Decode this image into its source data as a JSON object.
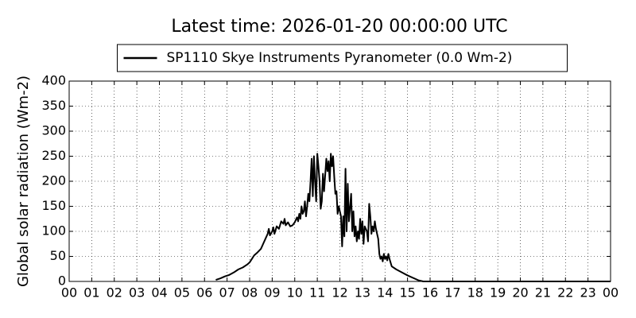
{
  "chart_data": {
    "type": "line",
    "title": "Latest time: 2026-01-20 00:00:00 UTC",
    "y_label": "Global solar radiation (Wm-2)",
    "legend_position": "upper center",
    "grid": true,
    "series": [
      {
        "name": "SP1110 Skye Instruments Pyranometer (0.0 Wm-2)",
        "color": "#000000",
        "x": [
          6.5,
          6.7,
          6.9,
          7.1,
          7.3,
          7.5,
          7.7,
          7.9,
          8.0,
          8.1,
          8.2,
          8.35,
          8.5,
          8.6,
          8.7,
          8.8,
          8.85,
          8.9,
          9.0,
          9.05,
          9.1,
          9.2,
          9.3,
          9.4,
          9.5,
          9.55,
          9.6,
          9.7,
          9.8,
          9.9,
          10.0,
          10.1,
          10.15,
          10.2,
          10.25,
          10.3,
          10.35,
          10.4,
          10.45,
          10.5,
          10.55,
          10.6,
          10.65,
          10.7,
          10.75,
          10.8,
          10.85,
          10.9,
          10.95,
          11.0,
          11.05,
          11.1,
          11.15,
          11.2,
          11.25,
          11.3,
          11.4,
          11.45,
          11.5,
          11.55,
          11.6,
          11.65,
          11.7,
          11.75,
          11.8,
          11.85,
          11.9,
          11.95,
          12.05,
          12.1,
          12.15,
          12.2,
          12.25,
          12.3,
          12.35,
          12.4,
          12.5,
          12.55,
          12.6,
          12.65,
          12.7,
          12.75,
          12.8,
          12.85,
          12.9,
          12.95,
          13.0,
          13.05,
          13.1,
          13.2,
          13.25,
          13.3,
          13.35,
          13.4,
          13.45,
          13.5,
          13.55,
          13.6,
          13.7,
          13.75,
          13.8,
          13.85,
          13.9,
          13.95,
          14.0,
          14.05,
          14.1,
          14.15,
          14.2,
          14.3,
          14.5,
          15.0,
          15.5,
          15.7,
          16.0,
          24.0
        ],
        "values": [
          3,
          6,
          10,
          13,
          18,
          24,
          28,
          34,
          38,
          45,
          52,
          58,
          65,
          75,
          85,
          95,
          105,
          92,
          100,
          108,
          95,
          110,
          105,
          120,
          115,
          125,
          112,
          118,
          110,
          112,
          118,
          128,
          120,
          135,
          125,
          150,
          135,
          140,
          160,
          130,
          150,
          175,
          160,
          200,
          245,
          170,
          250,
          200,
          160,
          255,
          230,
          200,
          145,
          160,
          215,
          180,
          245,
          220,
          240,
          200,
          255,
          230,
          250,
          210,
          175,
          180,
          135,
          150,
          130,
          70,
          130,
          90,
          225,
          100,
          195,
          120,
          175,
          100,
          140,
          90,
          110,
          80,
          100,
          85,
          125,
          95,
          120,
          75,
          110,
          100,
          80,
          155,
          130,
          95,
          110,
          100,
          120,
          105,
          85,
          55,
          45,
          50,
          40,
          55,
          45,
          50,
          42,
          55,
          45,
          30,
          24,
          12,
          2,
          0,
          0,
          0
        ]
      }
    ],
    "xlim": [
      0,
      24
    ],
    "xticks": [
      {
        "value": 0,
        "label": "00"
      },
      {
        "value": 1,
        "label": "01"
      },
      {
        "value": 2,
        "label": "02"
      },
      {
        "value": 3,
        "label": "03"
      },
      {
        "value": 4,
        "label": "04"
      },
      {
        "value": 5,
        "label": "05"
      },
      {
        "value": 6,
        "label": "06"
      },
      {
        "value": 7,
        "label": "07"
      },
      {
        "value": 8,
        "label": "08"
      },
      {
        "value": 9,
        "label": "09"
      },
      {
        "value": 10,
        "label": "10"
      },
      {
        "value": 11,
        "label": "11"
      },
      {
        "value": 12,
        "label": "12"
      },
      {
        "value": 13,
        "label": "13"
      },
      {
        "value": 14,
        "label": "14"
      },
      {
        "value": 15,
        "label": "15"
      },
      {
        "value": 16,
        "label": "16"
      },
      {
        "value": 17,
        "label": "17"
      },
      {
        "value": 18,
        "label": "18"
      },
      {
        "value": 19,
        "label": "19"
      },
      {
        "value": 20,
        "label": "20"
      },
      {
        "value": 21,
        "label": "21"
      },
      {
        "value": 22,
        "label": "22"
      },
      {
        "value": 23,
        "label": "23"
      },
      {
        "value": 24,
        "label": "00"
      }
    ],
    "ylim": [
      0,
      400
    ],
    "yticks": [
      0,
      50,
      100,
      150,
      200,
      250,
      300,
      350,
      400
    ]
  }
}
